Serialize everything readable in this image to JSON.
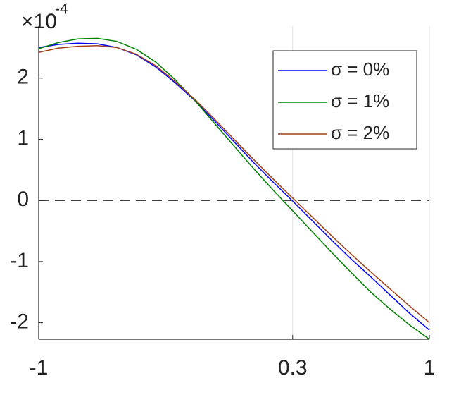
{
  "chart_data": {
    "type": "line",
    "y_multiplier": "×10",
    "y_exponent": "-4",
    "x": [
      -1,
      -0.9,
      -0.8,
      -0.7,
      -0.6,
      -0.5,
      -0.4,
      -0.3,
      -0.2,
      -0.1,
      0,
      0.1,
      0.2,
      0.3,
      0.4,
      0.5,
      0.6,
      0.7,
      0.8,
      0.9,
      1
    ],
    "series": [
      {
        "name": "σ = 0%",
        "color": "#0000ff",
        "values": [
          2.5,
          2.55,
          2.57,
          2.56,
          2.5,
          2.38,
          2.18,
          1.92,
          1.63,
          1.3,
          0.96,
          0.62,
          0.3,
          -0.01,
          -0.33,
          -0.65,
          -0.96,
          -1.25,
          -1.55,
          -1.85,
          -2.12
        ]
      },
      {
        "name": "σ = 1%",
        "color": "#008000",
        "values": [
          2.48,
          2.58,
          2.64,
          2.65,
          2.6,
          2.47,
          2.26,
          1.97,
          1.63,
          1.26,
          0.89,
          0.52,
          0.17,
          -0.17,
          -0.51,
          -0.85,
          -1.18,
          -1.5,
          -1.78,
          -2.04,
          -2.27
        ]
      },
      {
        "name": "σ = 2%",
        "color": "#a0401a",
        "values": [
          2.42,
          2.49,
          2.52,
          2.53,
          2.5,
          2.39,
          2.2,
          1.94,
          1.65,
          1.33,
          1.0,
          0.67,
          0.35,
          0.04,
          -0.27,
          -0.58,
          -0.88,
          -1.17,
          -1.45,
          -1.73,
          -2.0
        ]
      }
    ],
    "xlim": [
      -1,
      1
    ],
    "xticks": [
      -1,
      0.3,
      1
    ],
    "ylim": [
      -2.27,
      2.85
    ],
    "yticks": [
      -2,
      -1,
      0,
      1,
      2
    ],
    "xgrid": true,
    "hline": 0,
    "legend": "upper right"
  }
}
